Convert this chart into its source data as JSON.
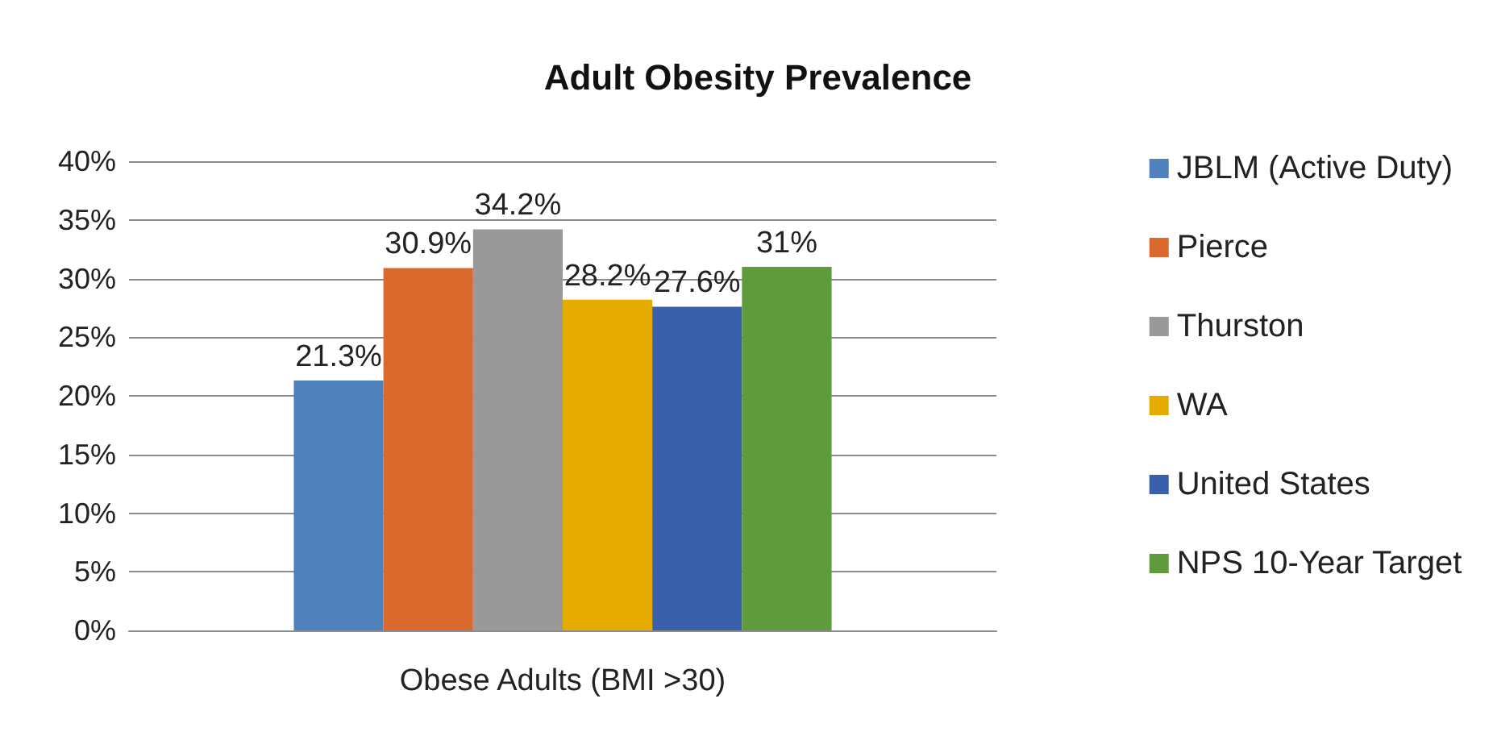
{
  "chart_data": {
    "type": "bar",
    "title": "Adult Obesity Prevalence",
    "categories": [
      "Obese Adults (BMI >30)"
    ],
    "series": [
      {
        "name": "JBLM (Active Duty)",
        "color": "#4f81bd",
        "values": [
          21.3
        ],
        "value_labels": [
          "21.3%"
        ]
      },
      {
        "name": "Pierce",
        "color": "#d9692c",
        "values": [
          30.9
        ],
        "value_labels": [
          "30.9%"
        ]
      },
      {
        "name": "Thurston",
        "color": "#999999",
        "values": [
          34.2
        ],
        "value_labels": [
          "34.2%"
        ]
      },
      {
        "name": "WA",
        "color": "#e5ab00",
        "values": [
          28.2
        ],
        "value_labels": [
          "28.2%"
        ]
      },
      {
        "name": "United States",
        "color": "#3a60ac",
        "values": [
          27.6
        ],
        "value_labels": [
          "27.6%"
        ]
      },
      {
        "name": "NPS 10-Year Target",
        "color": "#5f9b3d",
        "values": [
          31
        ],
        "value_labels": [
          "31%"
        ]
      }
    ],
    "ylim": [
      0,
      40
    ],
    "yticks": [
      {
        "value": 0,
        "label": "0%"
      },
      {
        "value": 5,
        "label": "5%"
      },
      {
        "value": 10,
        "label": "10%"
      },
      {
        "value": 15,
        "label": "15%"
      },
      {
        "value": 20,
        "label": "20%"
      },
      {
        "value": 25,
        "label": "25%"
      },
      {
        "value": 30,
        "label": "30%"
      },
      {
        "value": 35,
        "label": "35%"
      },
      {
        "value": 40,
        "label": "40%"
      }
    ],
    "grid": "y",
    "legend": "right"
  }
}
